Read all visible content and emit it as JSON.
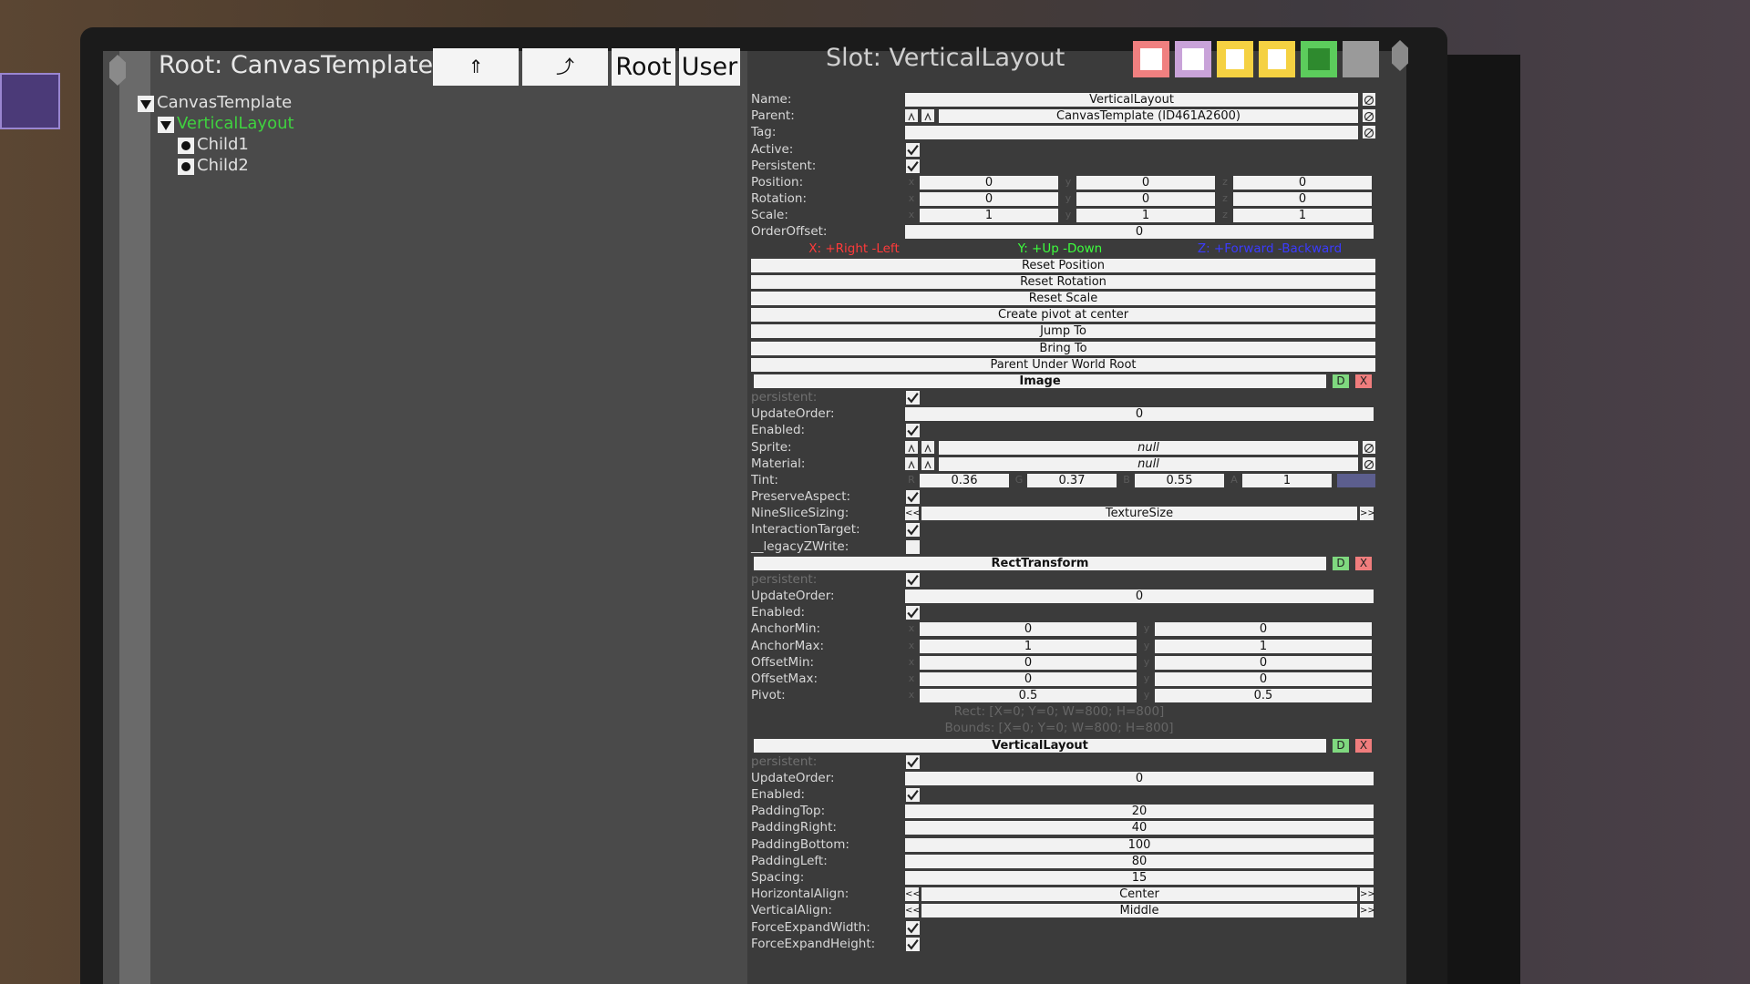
{
  "header": {
    "root_title": "Root: CanvasTemplate",
    "nav_buttons": [
      "⇑",
      "⤴",
      "Root",
      "User"
    ],
    "slot_title": "Slot: VerticalLayout"
  },
  "tree": [
    {
      "label": "CanvasTemplate",
      "depth": 0,
      "expanded": true
    },
    {
      "label": "VerticalLayout",
      "depth": 1,
      "expanded": true,
      "selected": true
    },
    {
      "label": "Child1",
      "depth": 2
    },
    {
      "label": "Child2",
      "depth": 2
    }
  ],
  "enum_buttons": [
    "<<",
    ">>"
  ],
  "component_buttons": [
    "D",
    "X"
  ],
  "inspector": {
    "slot_fields": [
      {
        "label": "Name:",
        "kind": "text",
        "value": "VerticalLayout",
        "clearable": true
      },
      {
        "label": "Parent:",
        "kind": "ref",
        "value": "CanvasTemplate (ID461A2600)",
        "clearable": true
      },
      {
        "label": "Tag:",
        "kind": "text",
        "clearable": true
      },
      {
        "label": "Active:",
        "kind": "check",
        "checked": true
      },
      {
        "label": "Persistent:",
        "kind": "check",
        "checked": true
      },
      {
        "label": "Position:",
        "kind": "vector",
        "axes": [
          "x",
          "y",
          "z"
        ],
        "values": [
          0,
          0,
          0
        ]
      },
      {
        "label": "Rotation:",
        "kind": "vector",
        "axes": [
          "x",
          "y",
          "z"
        ],
        "values": [
          0,
          0,
          0
        ]
      },
      {
        "label": "Scale:",
        "kind": "vector",
        "axes": [
          "x",
          "y",
          "z"
        ],
        "values": [
          1,
          1,
          1
        ]
      },
      {
        "label": "OrderOffset:",
        "kind": "text",
        "value": 0
      }
    ],
    "axis_hints": [
      {
        "text": "X: +Right -Left",
        "color": "#ff3a3a"
      },
      {
        "text": "Y: +Up -Down",
        "color": "#3cff3c"
      },
      {
        "text": "Z: +Forward -Backward",
        "color": "#3b3bff"
      }
    ],
    "actions": [
      "Reset Position",
      "Reset Rotation",
      "Reset Scale",
      "Create pivot at center",
      "Jump To",
      "Bring To",
      "Parent Under World Root"
    ],
    "components": [
      {
        "name": "Image",
        "fields": [
          {
            "label": "persistent:",
            "kind": "check",
            "checked": true,
            "dim": true
          },
          {
            "label": "UpdateOrder:",
            "kind": "text",
            "value": 0
          },
          {
            "label": "Enabled:",
            "kind": "check",
            "checked": true
          },
          {
            "label": "Sprite:",
            "kind": "ref",
            "value": "null",
            "italic": true,
            "clearable": true
          },
          {
            "label": "Material:",
            "kind": "ref",
            "value": "null",
            "italic": true,
            "clearable": true
          },
          {
            "label": "Tint:",
            "kind": "color",
            "axes": [
              "R",
              "G",
              "B",
              "A"
            ],
            "values": [
              0.36,
              0.37,
              0.55,
              1
            ],
            "swatch": "#5c5e8e"
          },
          {
            "label": "PreserveAspect:",
            "kind": "check",
            "checked": true
          },
          {
            "label": "NineSliceSizing:",
            "kind": "enum",
            "value": "TextureSize"
          },
          {
            "label": "InteractionTarget:",
            "kind": "check",
            "checked": true
          },
          {
            "label": "__legacyZWrite:",
            "kind": "check",
            "checked": false
          }
        ]
      },
      {
        "name": "RectTransform",
        "fields": [
          {
            "label": "persistent:",
            "kind": "check",
            "checked": true,
            "dim": true
          },
          {
            "label": "UpdateOrder:",
            "kind": "text",
            "value": 0
          },
          {
            "label": "Enabled:",
            "kind": "check",
            "checked": true
          },
          {
            "label": "AnchorMin:",
            "kind": "vector",
            "axes": [
              "x",
              "y"
            ],
            "values": [
              0,
              0
            ]
          },
          {
            "label": "AnchorMax:",
            "kind": "vector",
            "axes": [
              "x",
              "y"
            ],
            "values": [
              1,
              1
            ]
          },
          {
            "label": "OffsetMin:",
            "kind": "vector",
            "axes": [
              "x",
              "y"
            ],
            "values": [
              0,
              0
            ]
          },
          {
            "label": "OffsetMax:",
            "kind": "vector",
            "axes": [
              "x",
              "y"
            ],
            "values": [
              0,
              0
            ]
          },
          {
            "label": "Pivot:",
            "kind": "vector",
            "axes": [
              "x",
              "y"
            ],
            "values": [
              0.5,
              0.5
            ]
          }
        ],
        "info": [
          "Rect: [X=0; Y=0; W=800; H=800]",
          "Bounds: [X=0; Y=0; W=800; H=800]"
        ]
      },
      {
        "name": "VerticalLayout",
        "fields": [
          {
            "label": "persistent:",
            "kind": "check",
            "checked": true,
            "dim": true
          },
          {
            "label": "UpdateOrder:",
            "kind": "text",
            "value": 0
          },
          {
            "label": "Enabled:",
            "kind": "check",
            "checked": true
          },
          {
            "label": "PaddingTop:",
            "kind": "text",
            "value": 20
          },
          {
            "label": "PaddingRight:",
            "kind": "text",
            "value": 40
          },
          {
            "label": "PaddingBottom:",
            "kind": "text",
            "value": 100
          },
          {
            "label": "PaddingLeft:",
            "kind": "text",
            "value": 80
          },
          {
            "label": "Spacing:",
            "kind": "text",
            "value": 15
          },
          {
            "label": "HorizontalAlign:",
            "kind": "enum",
            "value": "Center"
          },
          {
            "label": "VerticalAlign:",
            "kind": "enum",
            "value": "Middle"
          },
          {
            "label": "ForceExpandWidth:",
            "kind": "check",
            "checked": true
          },
          {
            "label": "ForceExpandHeight:",
            "kind": "check",
            "checked": true
          }
        ]
      }
    ]
  }
}
